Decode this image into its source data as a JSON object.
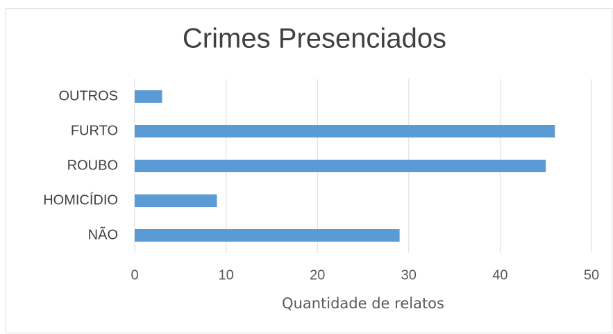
{
  "chart_data": {
    "type": "bar",
    "orientation": "horizontal",
    "title": "Crimes Presenciados",
    "x_label": "Quantidade de relatos",
    "categories": [
      "OUTROS",
      "FURTO",
      "ROUBO",
      "HOMICÍDIO",
      "NÃO"
    ],
    "values": [
      3,
      46,
      45,
      9,
      29
    ],
    "color": "#5b9bd5",
    "xlim": [
      0,
      50
    ],
    "xticks": [
      0,
      10,
      20,
      30,
      40,
      50
    ],
    "grid": true
  }
}
